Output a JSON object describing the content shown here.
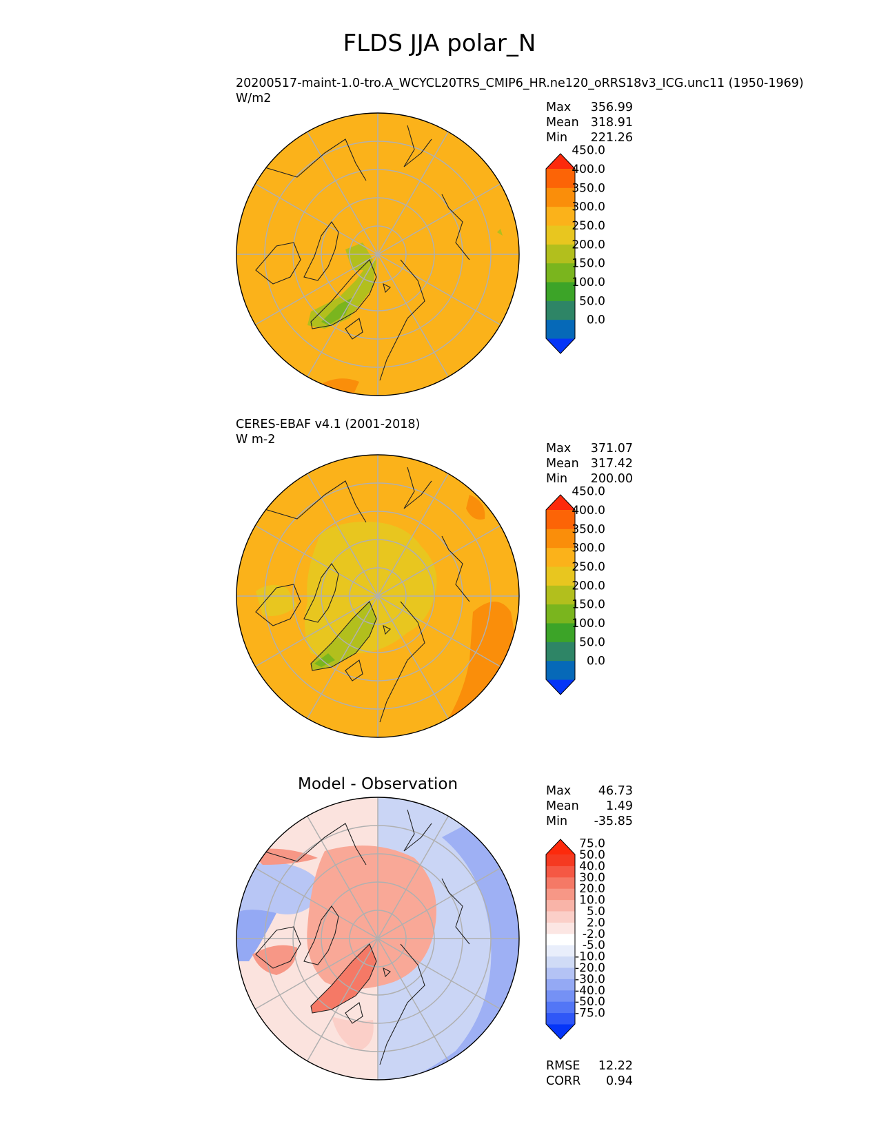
{
  "figure_title": "FLDS JJA polar_N",
  "panels": [
    {
      "title": "20200517-maint-1.0-tro.A_WCYCL20TRS_CMIP6_HR.ne120_oRRS18v3_ICG.unc11 (1950-1969)",
      "units": "W/m2",
      "stats": {
        "max_label": "Max",
        "max": "356.99",
        "mean_label": "Mean",
        "mean": "318.91",
        "min_label": "Min",
        "min": "221.26"
      }
    },
    {
      "title": "CERES-EBAF v4.1 (2001-2018)",
      "units": "W m-2",
      "stats": {
        "max_label": "Max",
        "max": "371.07",
        "mean_label": "Mean",
        "mean": "317.42",
        "min_label": "Min",
        "min": "200.00"
      }
    },
    {
      "title": "Model - Observation",
      "stats": {
        "max_label": "Max",
        "max": "46.73",
        "mean_label": "Mean",
        "mean": "1.49",
        "min_label": "Min",
        "min": "-35.85"
      },
      "metrics": {
        "rmse_label": "RMSE",
        "rmse": "12.22",
        "corr_label": "CORR",
        "corr": "0.94"
      }
    }
  ],
  "colorbars": {
    "fields": {
      "levels": [
        "0.0",
        "50.0",
        "100.0",
        "150.0",
        "200.0",
        "250.0",
        "300.0",
        "350.0",
        "400.0",
        "450.0"
      ],
      "colors": [
        "#0535f7",
        "#0669b8",
        "#2e8566",
        "#3ca428",
        "#7ab51e",
        "#b2bf1d",
        "#e8c61f",
        "#fbb21a",
        "#fa8e0a",
        "#fc6406",
        "#fd2a0c"
      ]
    },
    "diff": {
      "levels": [
        "-75.0",
        "-50.0",
        "-40.0",
        "-30.0",
        "-20.0",
        "-10.0",
        "-5.0",
        "-2.0",
        "2.0",
        "5.0",
        "10.0",
        "20.0",
        "30.0",
        "40.0",
        "50.0",
        "75.0"
      ],
      "colors": [
        "#0535f7",
        "#2f57f7",
        "#5376f6",
        "#7591f5",
        "#94a9f4",
        "#b4c3f5",
        "#d0dbf6",
        "#e9eefb",
        "#ffffff",
        "#fce6e3",
        "#fbcfc8",
        "#f9b4a8",
        "#f79786",
        "#f57966",
        "#f55844",
        "#f53a21",
        "#fd2a0c"
      ]
    }
  },
  "map_colors": {
    "model_base": "#fbb21a",
    "obs_base": "#fbb21a",
    "diff_base": "#fbd9d1"
  }
}
